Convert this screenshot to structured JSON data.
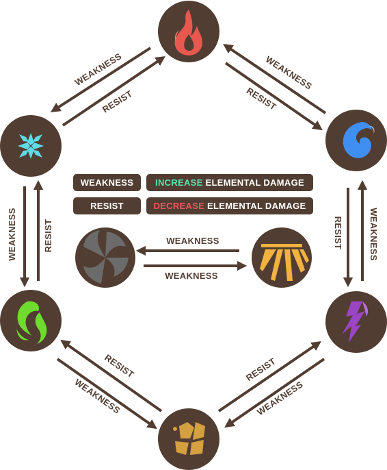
{
  "legend": {
    "weakness_label": "WEAKNESS",
    "weakness_effect_highlight": "INCREASE",
    "weakness_effect_rest": " ELEMENTAL DAMAGE",
    "resist_label": "RESIST",
    "resist_effect_highlight": "DECREASE",
    "resist_effect_rest": " ELEMENTAL DAMAGE"
  },
  "colors": {
    "node": "#523d32",
    "arrow": "#523d32",
    "increase": "#5fe3b3",
    "decrease": "#f0575a",
    "fire": "#e8584f",
    "water": "#3f8ff2",
    "lightning": "#9a45c4",
    "earth": "#d4a040",
    "wind": "#6ddc2e",
    "ice": "#5fdbe8",
    "dark": "#6b6b6b",
    "light": "#f2b240"
  },
  "icons": {
    "fire": "fire-icon",
    "water": "water-icon",
    "lightning": "lightning-icon",
    "earth": "earth-icon",
    "wind": "wind-icon",
    "ice": "ice-icon",
    "dark": "dark-icon",
    "light": "light-icon"
  },
  "arrow_labels": {
    "fire_to_ice": "WEAKNESS",
    "ice_to_fire": "RESIST",
    "water_to_fire": "WEAKNESS",
    "fire_to_water": "RESIST",
    "ice_to_wind": "WEAKNESS",
    "wind_to_ice": "RESIST",
    "lightning_to_water": "WEAKNESS",
    "water_to_lightning": "RESIST",
    "earth_to_wind": "RESIST",
    "wind_to_earth": "WEAKNESS",
    "earth_to_lightning": "RESIST",
    "lightning_to_earth": "WEAKNESS",
    "light_to_dark": "WEAKNESS",
    "dark_to_light": "WEAKNESS"
  }
}
